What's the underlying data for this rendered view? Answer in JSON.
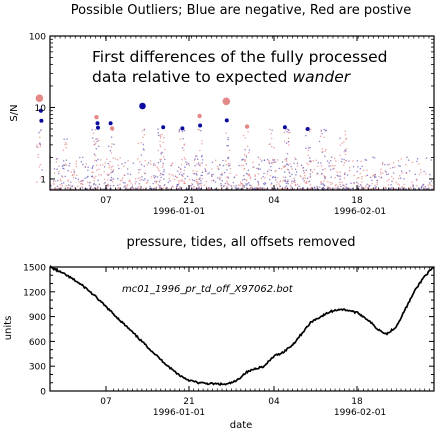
{
  "colors": {
    "negative": "#0a0a9e",
    "positive": "#e48888",
    "line": "#000000"
  },
  "chart_data": [
    {
      "type": "scatter",
      "title": "Possible Outliers; Blue are negative, Red are postive",
      "annotation_line1": "First differences of the fully processed",
      "annotation_line2_prefix": "data relative to expected ",
      "annotation_line2_italic": "wander",
      "ylabel": "S/N",
      "yscale": "log",
      "ylim": [
        0.7,
        100
      ],
      "ytick_labels": [
        "1",
        "10",
        "100"
      ],
      "yticks": [
        1,
        10,
        100
      ],
      "xlim": [
        -18,
        58
      ],
      "xtick_top_labels": [
        "07",
        "21",
        "04",
        "18"
      ],
      "xtick_top_positions": [
        -25,
        -11,
        3,
        17
      ],
      "xtick_date_labels": [
        "1996-01-01",
        "1996-02-01"
      ],
      "xtick_date_positions": [
        0,
        31
      ],
      "grid": false,
      "outliers": [
        {
          "x": -20.1,
          "y": 13.5,
          "sign": "positive"
        },
        {
          "x": -19.8,
          "y": 9.0,
          "sign": "negative"
        },
        {
          "x": -19.7,
          "y": 6.5,
          "sign": "negative"
        },
        {
          "x": -8.8,
          "y": 7.3,
          "sign": "positive"
        },
        {
          "x": -8.6,
          "y": 6.0,
          "sign": "negative"
        },
        {
          "x": -8.5,
          "y": 5.2,
          "sign": "negative"
        },
        {
          "x": -6.0,
          "y": 6.0,
          "sign": "negative"
        },
        {
          "x": -5.7,
          "y": 5.1,
          "sign": "positive"
        },
        {
          "x": 0.3,
          "y": 10.5,
          "sign": "negative"
        },
        {
          "x": 4.4,
          "y": 5.3,
          "sign": "negative"
        },
        {
          "x": 8.2,
          "y": 5.1,
          "sign": "negative"
        },
        {
          "x": 11.6,
          "y": 7.6,
          "sign": "positive"
        },
        {
          "x": 11.7,
          "y": 5.6,
          "sign": "negative"
        },
        {
          "x": 16.9,
          "y": 12.2,
          "sign": "positive"
        },
        {
          "x": 17.0,
          "y": 6.6,
          "sign": "negative"
        },
        {
          "x": 21.0,
          "y": 5.4,
          "sign": "positive"
        },
        {
          "x": 28.5,
          "y": 5.3,
          "sign": "negative"
        },
        {
          "x": 33.0,
          "y": 5.0,
          "sign": "negative"
        }
      ]
    },
    {
      "type": "line",
      "title": "pressure, tides, all offsets removed",
      "series_label": "mc01_1996_pr_td_off_X97062.bot",
      "xlabel": "date",
      "ylabel": "units",
      "ylim": [
        0,
        1500
      ],
      "yticks": [
        0,
        100,
        200,
        300,
        400,
        500,
        600,
        700,
        800,
        900,
        1000,
        1100,
        1200,
        1300,
        1400,
        1500
      ],
      "ytick_labels": [
        "0",
        "",
        "",
        "300",
        "",
        "",
        "600",
        "",
        "",
        "900",
        "",
        "",
        "1200",
        "",
        "",
        "1500"
      ],
      "xlim": [
        -18,
        58
      ],
      "xtick_top_labels": [
        "07",
        "21",
        "04",
        "18"
      ],
      "xtick_top_positions": [
        -25,
        -11,
        3,
        17
      ],
      "xtick_date_labels": [
        "1996-01-01",
        "1996-02-01"
      ],
      "xtick_date_positions": [
        0,
        31
      ],
      "grid": false,
      "x": [
        -31.5,
        -30,
        -28,
        -26,
        -24,
        -22,
        -20,
        -18,
        -16,
        -14,
        -12,
        -10,
        -8,
        -6,
        -4,
        -2,
        0,
        2,
        4,
        6,
        8,
        10,
        12,
        14,
        16,
        18,
        20,
        22,
        24,
        26,
        28,
        30,
        32,
        34,
        36,
        38,
        40,
        42,
        44,
        46,
        48,
        50
      ],
      "y": [
        1500,
        1460,
        1400,
        1330,
        1250,
        1150,
        1040,
        930,
        820,
        710,
        600,
        490,
        380,
        280,
        190,
        130,
        100,
        90,
        85,
        80,
        120,
        220,
        270,
        300,
        420,
        470,
        560,
        700,
        840,
        900,
        960,
        990,
        975,
        940,
        860,
        750,
        690,
        780,
        1000,
        1220,
        1390,
        1500
      ]
    }
  ]
}
